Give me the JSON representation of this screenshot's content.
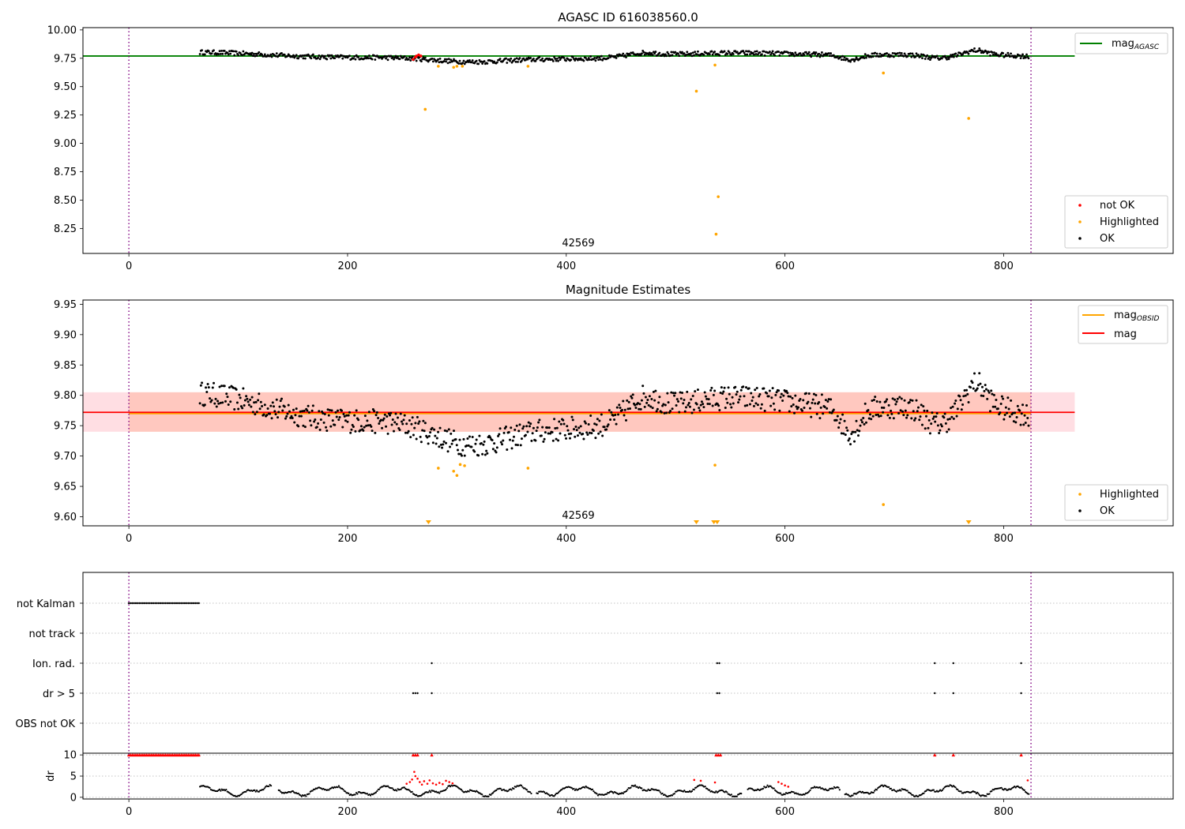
{
  "chart_data": [
    {
      "type": "scatter",
      "title": "AGASC ID 616038560.0",
      "xlabel": "",
      "ylabel": "",
      "xlim": [
        -42,
        955
      ],
      "ylim": [
        8.03,
        10.02
      ],
      "xticks": [
        0,
        200,
        400,
        600,
        800
      ],
      "yticks": [
        "8.25",
        "8.50",
        "8.75",
        "9.00",
        "9.25",
        "9.50",
        "9.75",
        "10.00"
      ],
      "obsid_label": "42569",
      "obsid_x": 412,
      "vlines": [
        0,
        825
      ],
      "mag_agasc": 9.77,
      "legend_top": {
        "name_base": "mag",
        "name_sub": "AGASC",
        "color": "#008000"
      },
      "legend_bottom": [
        {
          "name": "not OK",
          "color": "#ff0000"
        },
        {
          "name": "Highlighted",
          "color": "#ffa500"
        },
        {
          "name": "OK",
          "color": "#000000"
        }
      ],
      "highlighted": [
        [
          271,
          9.3
        ],
        [
          283,
          9.68
        ],
        [
          297,
          9.67
        ],
        [
          300,
          9.68
        ],
        [
          305,
          9.68
        ],
        [
          365,
          9.68
        ],
        [
          519,
          9.46
        ],
        [
          536,
          9.69
        ],
        [
          539,
          8.53
        ],
        [
          537,
          8.2
        ],
        [
          690,
          9.62
        ],
        [
          768,
          9.22
        ]
      ],
      "not_ok": [
        [
          260,
          9.74
        ],
        [
          262,
          9.76
        ],
        [
          263,
          9.77
        ],
        [
          265,
          9.78
        ],
        [
          267,
          9.77
        ]
      ]
    },
    {
      "type": "scatter",
      "title": "Magnitude Estimates",
      "xlabel": "",
      "ylabel": "",
      "xlim": [
        -42,
        955
      ],
      "ylim": [
        9.585,
        9.957
      ],
      "xticks": [
        0,
        200,
        400,
        600,
        800
      ],
      "yticks": [
        "9.60",
        "9.65",
        "9.70",
        "9.75",
        "9.80",
        "9.85",
        "9.90",
        "9.95"
      ],
      "obsid_label": "42569",
      "obsid_x": 412,
      "vlines": [
        0,
        825
      ],
      "mag": 9.772,
      "mag_obsid": 9.77,
      "band_obsid": [
        9.74,
        9.805
      ],
      "band_mag": [
        9.74,
        9.805
      ],
      "legend_top": [
        {
          "name_base": "mag",
          "name_sub": "OBSID",
          "color": "#ffa500"
        },
        {
          "name_base": "mag",
          "name_sub": "",
          "color": "#ff0000"
        }
      ],
      "legend_bottom": [
        {
          "name": "Highlighted",
          "color": "#ffa500"
        },
        {
          "name": "OK",
          "color": "#000000"
        }
      ],
      "highlighted": [
        [
          283,
          9.68
        ],
        [
          297,
          9.675
        ],
        [
          300,
          9.668
        ],
        [
          303,
          9.686
        ],
        [
          307,
          9.684
        ],
        [
          365,
          9.68
        ],
        [
          536,
          9.685
        ],
        [
          690,
          9.62
        ]
      ],
      "below_range_markers": [
        274,
        519,
        535,
        538,
        768
      ]
    },
    {
      "type": "scatter",
      "xlabel": "",
      "ylabel": "dr",
      "xlim": [
        -42,
        955
      ],
      "xticks": [
        0,
        200,
        400,
        600,
        800
      ],
      "vlines": [
        0,
        825
      ],
      "flag_rows": [
        "not Kalman",
        "not track",
        "Ion. rad.",
        "dr > 5",
        "OBS not OK"
      ],
      "flag_points": {
        "not Kalman": {
          "range": [
            0,
            65
          ]
        },
        "not track": {
          "points": []
        },
        "Ion. rad.": {
          "points": [
            277,
            538,
            540,
            737,
            754,
            816
          ]
        },
        "dr > 5": {
          "points": [
            260,
            262,
            264,
            277,
            538,
            540,
            737,
            754,
            816
          ]
        },
        "OBS not OK": {
          "points": []
        }
      },
      "dr_ylim": [
        0,
        10
      ],
      "dr_yticks": [
        "0",
        "5",
        "10"
      ],
      "dr_red": [
        [
          254,
          3.2
        ],
        [
          257,
          3.6
        ],
        [
          259,
          4.2
        ],
        [
          261,
          6.0
        ],
        [
          262,
          5.0
        ],
        [
          264,
          4.4
        ],
        [
          266,
          3.6
        ],
        [
          268,
          3.0
        ],
        [
          270,
          3.8
        ],
        [
          273,
          3.2
        ],
        [
          275,
          4.0
        ],
        [
          278,
          3.3
        ],
        [
          281,
          3.0
        ],
        [
          284,
          3.4
        ],
        [
          287,
          3.1
        ],
        [
          290,
          3.9
        ],
        [
          293,
          3.6
        ],
        [
          296,
          3.3
        ],
        [
          517,
          4.1
        ],
        [
          523,
          3.9
        ],
        [
          536,
          3.5
        ],
        [
          594,
          3.6
        ],
        [
          597,
          3.2
        ],
        [
          600,
          2.8
        ],
        [
          603,
          2.5
        ],
        [
          822,
          4.0
        ]
      ]
    }
  ]
}
